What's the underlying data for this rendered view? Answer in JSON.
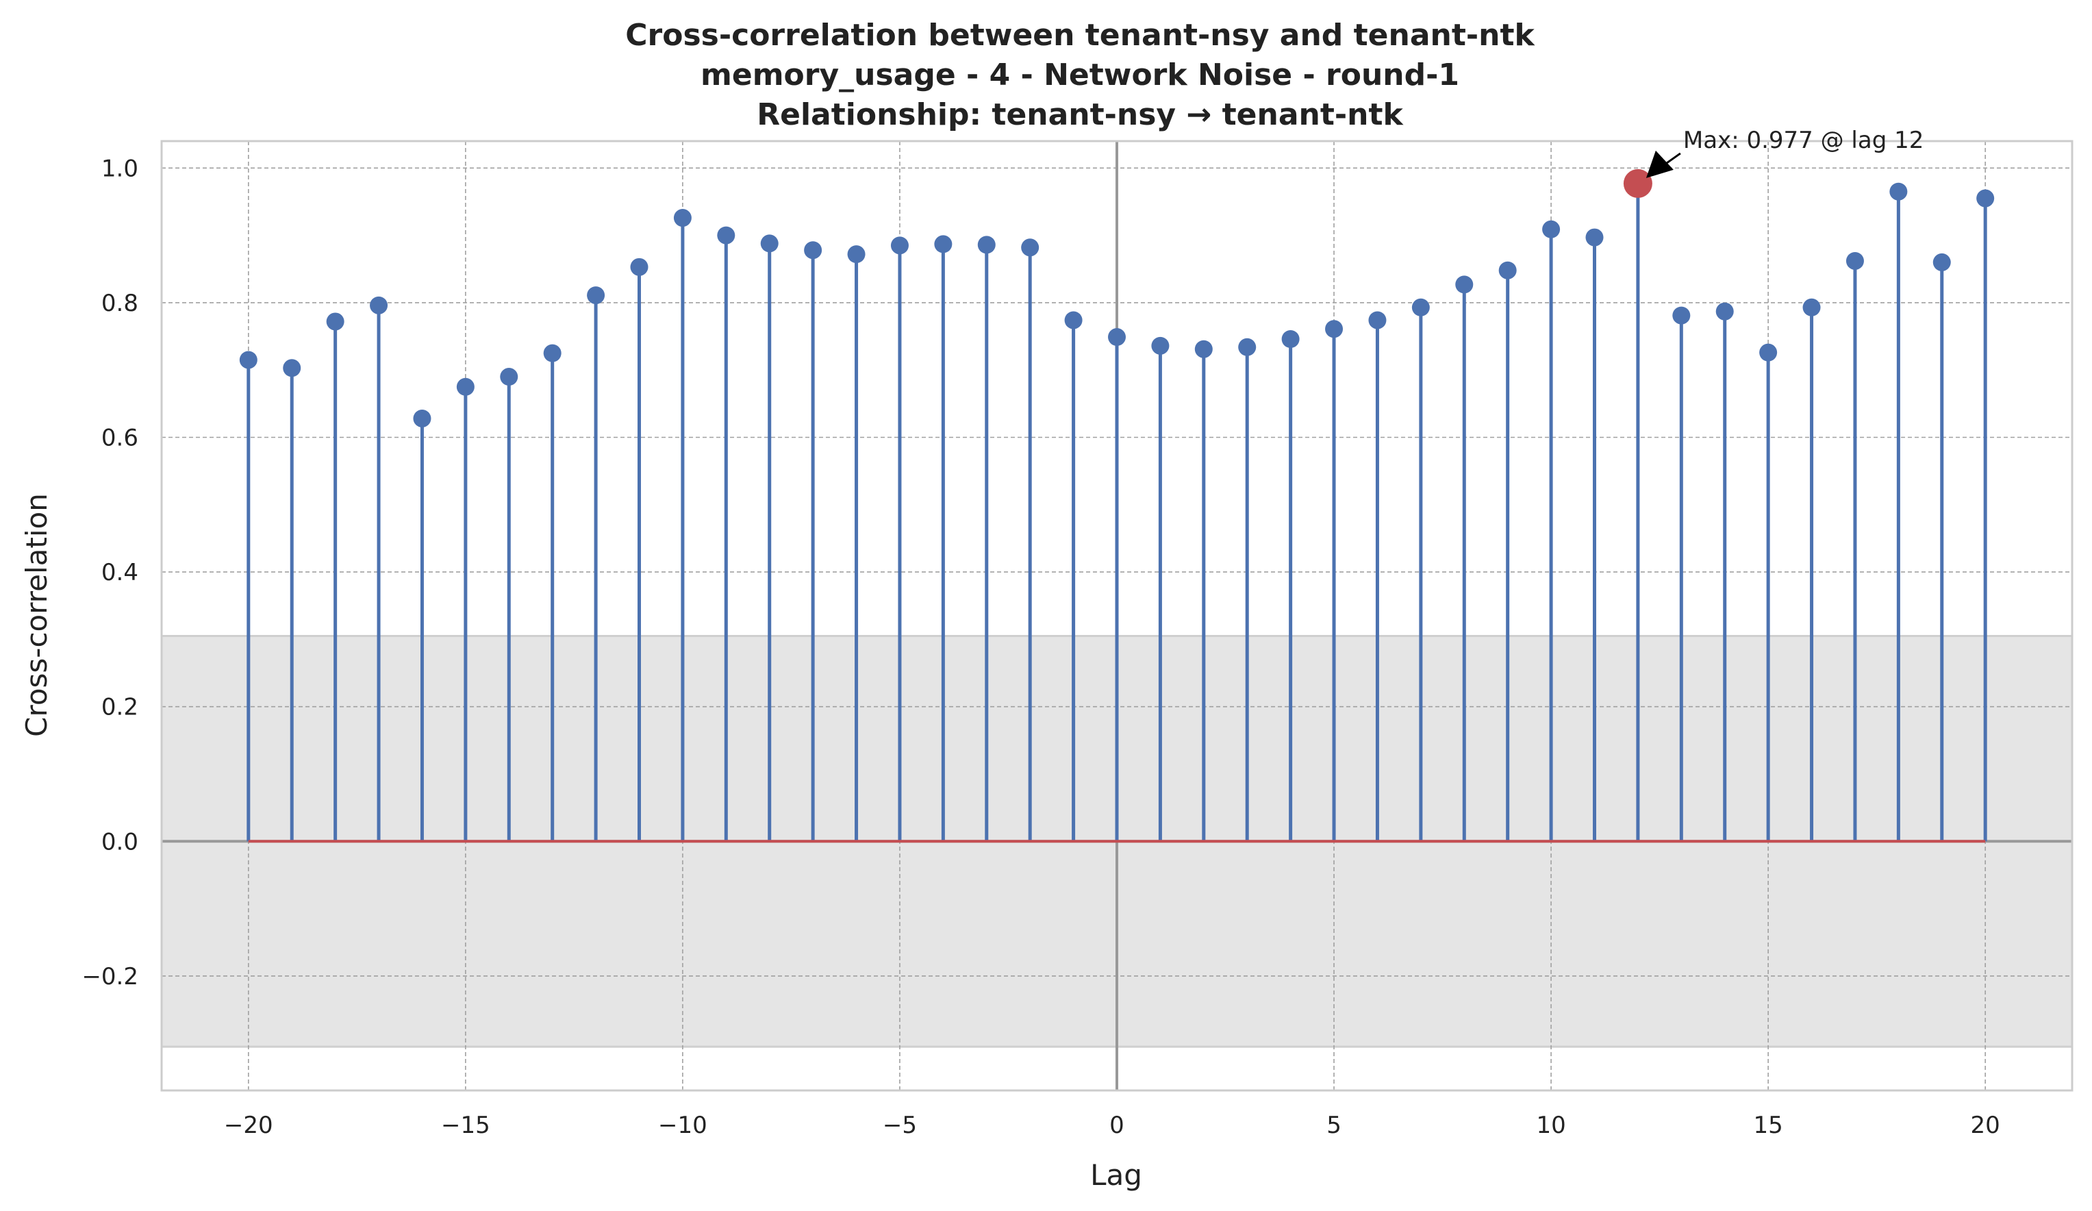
{
  "chart_data": {
    "type": "stem",
    "title_lines": [
      "Cross-correlation between tenant-nsy and tenant-ntk",
      "memory_usage - 4 - Network Noise - round-1",
      "Relationship: tenant-nsy → tenant-ntk"
    ],
    "xlabel": "Lag",
    "ylabel": "Cross-correlation",
    "xlim": [
      -22,
      22
    ],
    "ylim": [
      -0.37,
      1.04
    ],
    "x_ticks": [
      -20,
      -15,
      -10,
      -5,
      0,
      5,
      10,
      15,
      20
    ],
    "x_tick_labels": [
      "−20",
      "−15",
      "−10",
      "−5",
      "0",
      "5",
      "10",
      "15",
      "20"
    ],
    "y_ticks": [
      -0.2,
      0.0,
      0.2,
      0.4,
      0.6,
      0.8,
      1.0
    ],
    "y_tick_labels": [
      "−0.2",
      "0.0",
      "0.2",
      "0.4",
      "0.6",
      "0.8",
      "1.0"
    ],
    "grid": true,
    "confidence_band": [
      -0.305,
      0.305
    ],
    "lags": [
      -20,
      -19,
      -18,
      -17,
      -16,
      -15,
      -14,
      -13,
      -12,
      -11,
      -10,
      -9,
      -8,
      -7,
      -6,
      -5,
      -4,
      -3,
      -2,
      -1,
      0,
      1,
      2,
      3,
      4,
      5,
      6,
      7,
      8,
      9,
      10,
      11,
      12,
      13,
      14,
      15,
      16,
      17,
      18,
      19,
      20
    ],
    "values": [
      0.715,
      0.703,
      0.772,
      0.796,
      0.628,
      0.675,
      0.69,
      0.725,
      0.811,
      0.853,
      0.926,
      0.9,
      0.888,
      0.878,
      0.872,
      0.885,
      0.887,
      0.886,
      0.882,
      0.774,
      0.749,
      0.736,
      0.731,
      0.734,
      0.746,
      0.761,
      0.774,
      0.793,
      0.827,
      0.848,
      0.909,
      0.897,
      0.977,
      0.781,
      0.787,
      0.726,
      0.793,
      0.862,
      0.965,
      0.86,
      0.955
    ],
    "max_point": {
      "lag": 12,
      "value": 0.977
    },
    "annotation": "Max: 0.977 @ lag 12",
    "colors": {
      "stem": "#4c72b0",
      "max_marker": "#c44e52",
      "baseline": "#c44e52",
      "band": "#e5e5e5",
      "band_edge": "#cfcfcf",
      "grid": "#a0a0a0",
      "zero_line": "#999999",
      "frame": "#cccccc"
    }
  }
}
